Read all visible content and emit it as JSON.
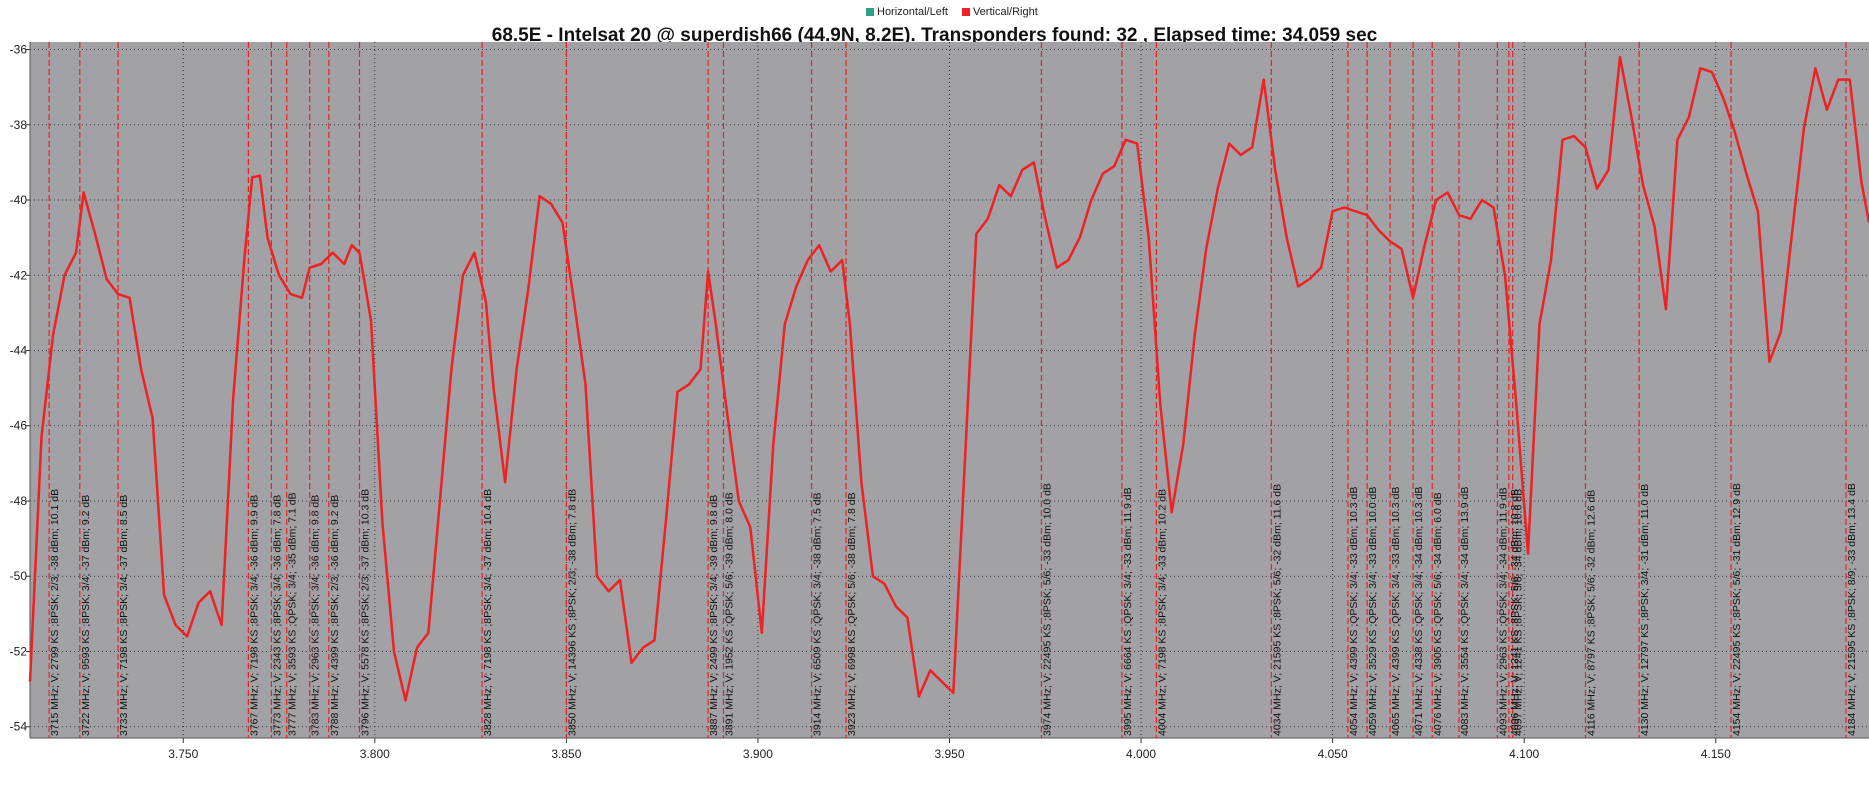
{
  "legend": [
    {
      "label": "Horizontal/Left",
      "color": "#2ca089"
    },
    {
      "label": "Vertical/Right",
      "color": "#ee2222"
    }
  ],
  "chart_data": {
    "type": "line",
    "title": "68.5E - Intelsat 20 @ superdish66 (44.9N, 8.2E). Transponders found: 32 , Elapsed time: 34.059 sec",
    "xlabel": "",
    "ylabel": "",
    "xlim": [
      3.71,
      4.19
    ],
    "ylim": [
      -54.3,
      -35.8
    ],
    "grid": true,
    "plot_background": "#a2a1a6",
    "x_ticks": [
      3.75,
      3.8,
      3.85,
      3.9,
      3.95,
      4.0,
      4.05,
      4.1,
      4.15
    ],
    "x_tick_labels": [
      "3.750",
      "3.800",
      "3.850",
      "3.900",
      "3.950",
      "4.000",
      "4.050",
      "4.100",
      "4.150"
    ],
    "y_ticks": [
      -36,
      -38,
      -40,
      -42,
      -44,
      -46,
      -48,
      -50,
      -52,
      -54
    ],
    "y_tick_labels": [
      "-36",
      "-38",
      "-40",
      "-42",
      "-44",
      "-46",
      "-48",
      "-50",
      "-52",
      "-54"
    ],
    "series": [
      {
        "name": "Vertical/Right",
        "color": "#ee2222",
        "x": [
          3.71,
          3.713,
          3.716,
          3.719,
          3.722,
          3.724,
          3.727,
          3.73,
          3.733,
          3.736,
          3.739,
          3.742,
          3.745,
          3.748,
          3.751,
          3.754,
          3.757,
          3.76,
          3.763,
          3.766,
          3.768,
          3.77,
          3.772,
          3.775,
          3.778,
          3.781,
          3.783,
          3.786,
          3.789,
          3.792,
          3.794,
          3.796,
          3.799,
          3.802,
          3.805,
          3.808,
          3.811,
          3.814,
          3.817,
          3.82,
          3.823,
          3.826,
          3.829,
          3.831,
          3.834,
          3.837,
          3.84,
          3.843,
          3.846,
          3.849,
          3.852,
          3.855,
          3.858,
          3.861,
          3.864,
          3.867,
          3.87,
          3.873,
          3.876,
          3.879,
          3.882,
          3.885,
          3.887,
          3.889,
          3.892,
          3.895,
          3.898,
          3.901,
          3.904,
          3.907,
          3.91,
          3.913,
          3.916,
          3.919,
          3.922,
          3.924,
          3.927,
          3.93,
          3.933,
          3.936,
          3.939,
          3.942,
          3.945,
          3.948,
          3.951,
          3.954,
          3.957,
          3.96,
          3.963,
          3.966,
          3.969,
          3.972,
          3.975,
          3.978,
          3.981,
          3.984,
          3.987,
          3.99,
          3.993,
          3.996,
          3.999,
          4.002,
          4.005,
          4.008,
          4.011,
          4.014,
          4.017,
          4.02,
          4.023,
          4.026,
          4.029,
          4.032,
          4.035,
          4.038,
          4.041,
          4.044,
          4.047,
          4.05,
          4.053,
          4.056,
          4.059,
          4.062,
          4.065,
          4.068,
          4.071,
          4.074,
          4.077,
          4.08,
          4.083,
          4.086,
          4.089,
          4.092,
          4.095,
          4.098,
          4.101,
          4.104,
          4.107,
          4.11,
          4.113,
          4.116,
          4.119,
          4.122,
          4.125,
          4.128,
          4.131,
          4.134,
          4.137,
          4.14,
          4.143,
          4.146,
          4.149,
          4.152,
          4.155,
          4.158,
          4.161,
          4.164,
          4.167,
          4.17,
          4.173,
          4.176,
          4.179,
          4.182,
          4.185,
          4.188,
          4.19
        ],
        "y": [
          -52.8,
          -46.3,
          -43.6,
          -42.0,
          -41.4,
          -39.8,
          -40.9,
          -42.1,
          -42.5,
          -42.6,
          -44.5,
          -45.8,
          -50.5,
          -51.3,
          -51.6,
          -50.7,
          -50.4,
          -51.3,
          -45.3,
          -41.5,
          -39.4,
          -39.35,
          -41.0,
          -42.0,
          -42.5,
          -42.6,
          -41.8,
          -41.7,
          -41.4,
          -41.7,
          -41.2,
          -41.4,
          -43.2,
          -48.6,
          -52.0,
          -53.3,
          -51.9,
          -51.5,
          -48.0,
          -44.5,
          -42.0,
          -41.4,
          -42.7,
          -45.0,
          -47.5,
          -44.5,
          -42.4,
          -39.9,
          -40.1,
          -40.6,
          -42.7,
          -44.9,
          -50.0,
          -50.4,
          -50.1,
          -52.3,
          -51.9,
          -51.7,
          -48.5,
          -45.1,
          -44.9,
          -44.5,
          -41.9,
          -43.3,
          -45.7,
          -48.0,
          -48.7,
          -51.5,
          -46.5,
          -43.3,
          -42.3,
          -41.6,
          -41.2,
          -41.9,
          -41.6,
          -43.3,
          -47.5,
          -50.0,
          -50.2,
          -50.8,
          -51.1,
          -53.2,
          -52.5,
          -52.8,
          -53.1,
          -47.0,
          -40.9,
          -40.5,
          -39.6,
          -39.9,
          -39.2,
          -39.0,
          -40.5,
          -41.8,
          -41.6,
          -41.0,
          -40.0,
          -39.3,
          -39.1,
          -38.4,
          -38.5,
          -41.0,
          -45.4,
          -48.3,
          -46.5,
          -43.6,
          -41.3,
          -39.7,
          -38.5,
          -38.8,
          -38.6,
          -36.8,
          -39.2,
          -41.0,
          -42.3,
          -42.1,
          -41.8,
          -40.3,
          -40.2,
          -40.3,
          -40.4,
          -40.8,
          -41.1,
          -41.3,
          -42.6,
          -41.2,
          -40.0,
          -39.8,
          -40.4,
          -40.5,
          -40.0,
          -40.2,
          -42.0,
          -45.5,
          -49.4,
          -43.3,
          -41.6,
          -38.4,
          -38.3,
          -38.6,
          -39.7,
          -39.2,
          -36.2,
          -37.8,
          -39.6,
          -40.7,
          -42.9,
          -38.4,
          -37.8,
          -36.5,
          -36.6,
          -37.3,
          -38.2,
          -39.3,
          -40.3,
          -44.3,
          -43.5,
          -40.8,
          -38.1,
          -36.5,
          -37.6,
          -36.8,
          -36.8,
          -39.5,
          -40.6
        ]
      }
    ],
    "transponders": [
      {
        "x": 3.715,
        "label": "3715 MHz; V; 2799 KS ;8PSK; 2/3; -38 dBm; 10.1 dB"
      },
      {
        "x": 3.723,
        "label": "3722 MHz; V; 9593 KS ;8PSK; 3/4; -37 dBm; 9.2 dB"
      },
      {
        "x": 3.733,
        "label": "3733 MHz; V; 7198 KS ;8PSK; 3/4; -37 dBm; 8.5 dB"
      },
      {
        "x": 3.767,
        "label": "3767 MHz; V; 7198 KS ;8PSK; 3/4; -36 dBm; 9.9 dB"
      },
      {
        "x": 3.773,
        "label": "3773 MHz; V; 2343 KS ;8PSK; 3/4; -36 dBm; 7.8 dB"
      },
      {
        "x": 3.777,
        "label": "3777 MHz; V; 3593 KS ;QPSK; 3/4; -35 dBm; 7.1 dB"
      },
      {
        "x": 3.783,
        "label": "3783 MHz; V; 2963 KS ;8PSK; 3/4; -36 dBm; 9.8 dB"
      },
      {
        "x": 3.788,
        "label": "3788 MHz; V; 4399 KS ;8PSK; 2/3; -36 dBm; 9.2 dB"
      },
      {
        "x": 3.796,
        "label": "3796 MHz; V; 5578 KS ;8PSK; 2/3; -37 dBm; 10.3 dB"
      },
      {
        "x": 3.828,
        "label": "3828 MHz; V; 7198 KS ;8PSK; 3/4; -37 dBm; 10.4 dB"
      },
      {
        "x": 3.85,
        "label": "3850 MHz; V; 14396 KS ;8PSK; 2/3; -38 dBm; 7.8 dB"
      },
      {
        "x": 3.887,
        "label": "3887 MHz; V; 2499 KS ;8PSK; 3/4; -39 dBm; 9.8 dB"
      },
      {
        "x": 3.891,
        "label": "3891 MHz; V; 1952 KS ;QPSK; 5/6; -39 dBm; 8.0 dB"
      },
      {
        "x": 3.914,
        "label": "3914 MHz; V; 6509 KS ;QPSK; 3/4; -38 dBm; 7.5 dB"
      },
      {
        "x": 3.923,
        "label": "3923 MHz; V; 6998 KS ;QPSK; 5/6; -38 dBm; 7.8 dB"
      },
      {
        "x": 3.974,
        "label": "3974 MHz; V; 22495 KS ;8PSK; 5/6; -33 dBm; 10.0 dB"
      },
      {
        "x": 3.995,
        "label": "3995 MHz; V; 6664 KS ;QPSK; 3/4; -33 dBm; 11.9 dB"
      },
      {
        "x": 4.004,
        "label": "4004 MHz; V; 7198 KS ;8PSK; 3/4; -33 dBm; 10.2 dB"
      },
      {
        "x": 4.034,
        "label": "4034 MHz; V; 21595 KS ;8PSK; 5/6; -32 dBm; 11.6 dB"
      },
      {
        "x": 4.054,
        "label": "4054 MHz; V; 4399 KS ;QPSK; 3/4; -33 dBm; 10.3 dB"
      },
      {
        "x": 4.059,
        "label": "4059 MHz; V; 3529 KS ;QPSK; 3/4; -33 dBm; 10.0 dB"
      },
      {
        "x": 4.065,
        "label": "4065 MHz; V; 4399 KS ;QPSK; 3/4; -33 dBm; 10.3 dB"
      },
      {
        "x": 4.071,
        "label": "4071 MHz; V; 4338 KS ;QPSK; 3/4; -34 dBm; 10.3 dB"
      },
      {
        "x": 4.076,
        "label": "4076 MHz; V; 3905 KS ;QPSK; 5/6; -34 dBm; 6.0 dB"
      },
      {
        "x": 4.083,
        "label": "4083 MHz; V; 3554 KS ;QPSK; 3/4; -34 dBm; 13.9 dB"
      },
      {
        "x": 4.093,
        "label": "4093 MHz; V; 2963 KS ;QPSK; 3/4; -34 dBm; 11.9 dB"
      },
      {
        "x": 4.096,
        "label": "4096 MHz; V; 1241 KS ;8PSK; 5/6; -34 dBm; 10.8 dB"
      },
      {
        "x": 4.097,
        "label": "4097 MHz; V; 1241 KS ;8PSK; 5/6; -34 dBm; 10.6 dB"
      },
      {
        "x": 4.116,
        "label": "4116 MHz; V; 8797 KS ;8PSK; 5/6; -32 dBm; 12.6 dB"
      },
      {
        "x": 4.13,
        "label": "4130 MHz; V; 12797 KS ;8PSK; 3/4; -31 dBm; 11.0 dB"
      },
      {
        "x": 4.154,
        "label": "4154 MHz; V; 22495 KS ;8PSK; 5/6; -31 dBm; 12.9 dB"
      },
      {
        "x": 4.184,
        "label": "4184 MHz; V; 21595 KS ;8PSK; 8/9; -33 dBm; 13.4 dB"
      }
    ]
  }
}
